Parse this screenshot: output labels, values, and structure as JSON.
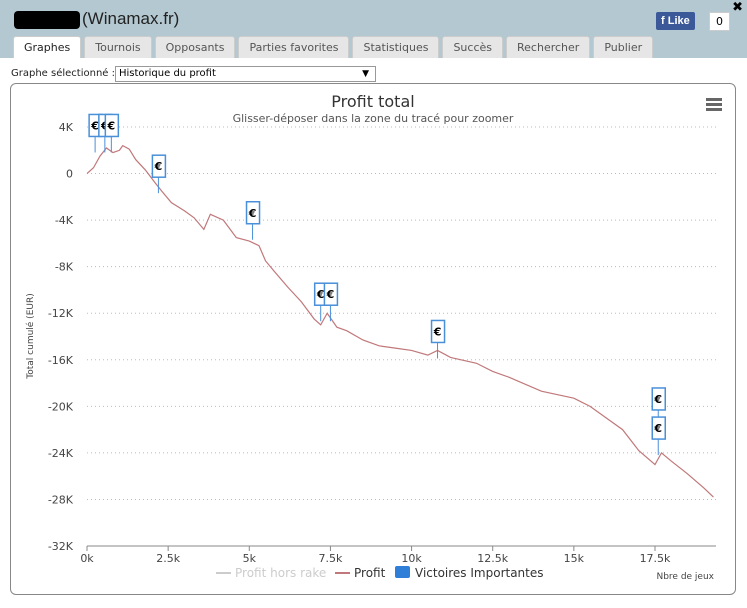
{
  "window": {
    "title": "(Winamax.fr)",
    "close": "✖",
    "like_label": "Like",
    "like_count": "0"
  },
  "tabs": [
    {
      "label": "Graphes"
    },
    {
      "label": "Tournois"
    },
    {
      "label": "Opposants"
    },
    {
      "label": "Parties favorites"
    },
    {
      "label": "Statistiques"
    },
    {
      "label": "Succès"
    },
    {
      "label": "Rechercher"
    },
    {
      "label": "Publier"
    }
  ],
  "selector": {
    "label": "Graphe sélectionné :",
    "value": "Historique du profit"
  },
  "chart_data": {
    "type": "line",
    "title": "Profit total",
    "subtitle": "Glisser-déposer dans la zone du tracé pour zoomer",
    "xlabel": "Nbre de jeux",
    "ylabel": "Total cumulé (EUR)",
    "xlim": [
      0,
      20000
    ],
    "ylim": [
      -32000,
      4000
    ],
    "xticks": [
      0,
      2500,
      5000,
      7500,
      10000,
      12500,
      15000,
      17500
    ],
    "xtick_labels": [
      "0k",
      "2.5k",
      "5k",
      "7.5k",
      "10k",
      "12.5k",
      "15k",
      "17.5k"
    ],
    "yticks": [
      4000,
      0,
      -4000,
      -8000,
      -12000,
      -16000,
      -20000,
      -24000,
      -28000,
      -32000
    ],
    "ytick_labels": [
      "4K",
      "0",
      "-4K",
      "-8K",
      "-12K",
      "-16K",
      "-20K",
      "-24K",
      "-28K",
      "-32K"
    ],
    "legend": [
      "Profit hors rake",
      "Profit",
      "Victoires Importantes"
    ],
    "legend_position": "bottom",
    "colors": {
      "profit": "#c0787a",
      "rake": "#cccccc",
      "flags": "#4a90d9"
    },
    "series": [
      {
        "name": "Profit",
        "x": [
          0,
          200,
          400,
          600,
          800,
          1000,
          1100,
          1300,
          1500,
          1800,
          2100,
          2300,
          2600,
          3000,
          3300,
          3600,
          3800,
          4200,
          4600,
          5000,
          5300,
          5500,
          5800,
          6200,
          6600,
          7000,
          7200,
          7400,
          7700,
          8000,
          8500,
          9000,
          9500,
          10000,
          10500,
          10800,
          11200,
          12000,
          12500,
          13000,
          14000,
          14500,
          15000,
          15500,
          16000,
          16500,
          17000,
          17500,
          17700,
          18000,
          18500,
          19000,
          19300
        ],
        "y": [
          0,
          500,
          1500,
          2200,
          1800,
          2000,
          2400,
          2100,
          1200,
          300,
          -800,
          -1500,
          -2500,
          -3200,
          -3800,
          -4800,
          -3500,
          -4000,
          -5500,
          -5800,
          -6200,
          -7500,
          -8500,
          -9800,
          -11000,
          -12500,
          -13000,
          -12000,
          -13200,
          -13500,
          -14300,
          -14800,
          -15000,
          -15200,
          -15600,
          -15200,
          -15800,
          -16300,
          -17000,
          -17500,
          -18700,
          -19000,
          -19300,
          -20000,
          -21000,
          -22000,
          -23800,
          -25000,
          -24000,
          -24700,
          -25800,
          -27000,
          -27800
        ]
      }
    ],
    "flags": [
      {
        "x": 250,
        "y": 2500,
        "label": "€"
      },
      {
        "x": 550,
        "y": 2500,
        "label": "€"
      },
      {
        "x": 750,
        "y": 2500,
        "label": "€"
      },
      {
        "x": 2200,
        "y": -1000,
        "label": "€"
      },
      {
        "x": 5100,
        "y": -5000,
        "label": "€"
      },
      {
        "x": 7200,
        "y": -12000,
        "label": "€"
      },
      {
        "x": 7500,
        "y": -12000,
        "label": "€"
      },
      {
        "x": 10800,
        "y": -15200,
        "label": "€"
      },
      {
        "x": 17600,
        "y": -21000,
        "label": "€"
      },
      {
        "x": 17600,
        "y": -23500,
        "label": "€"
      }
    ]
  }
}
